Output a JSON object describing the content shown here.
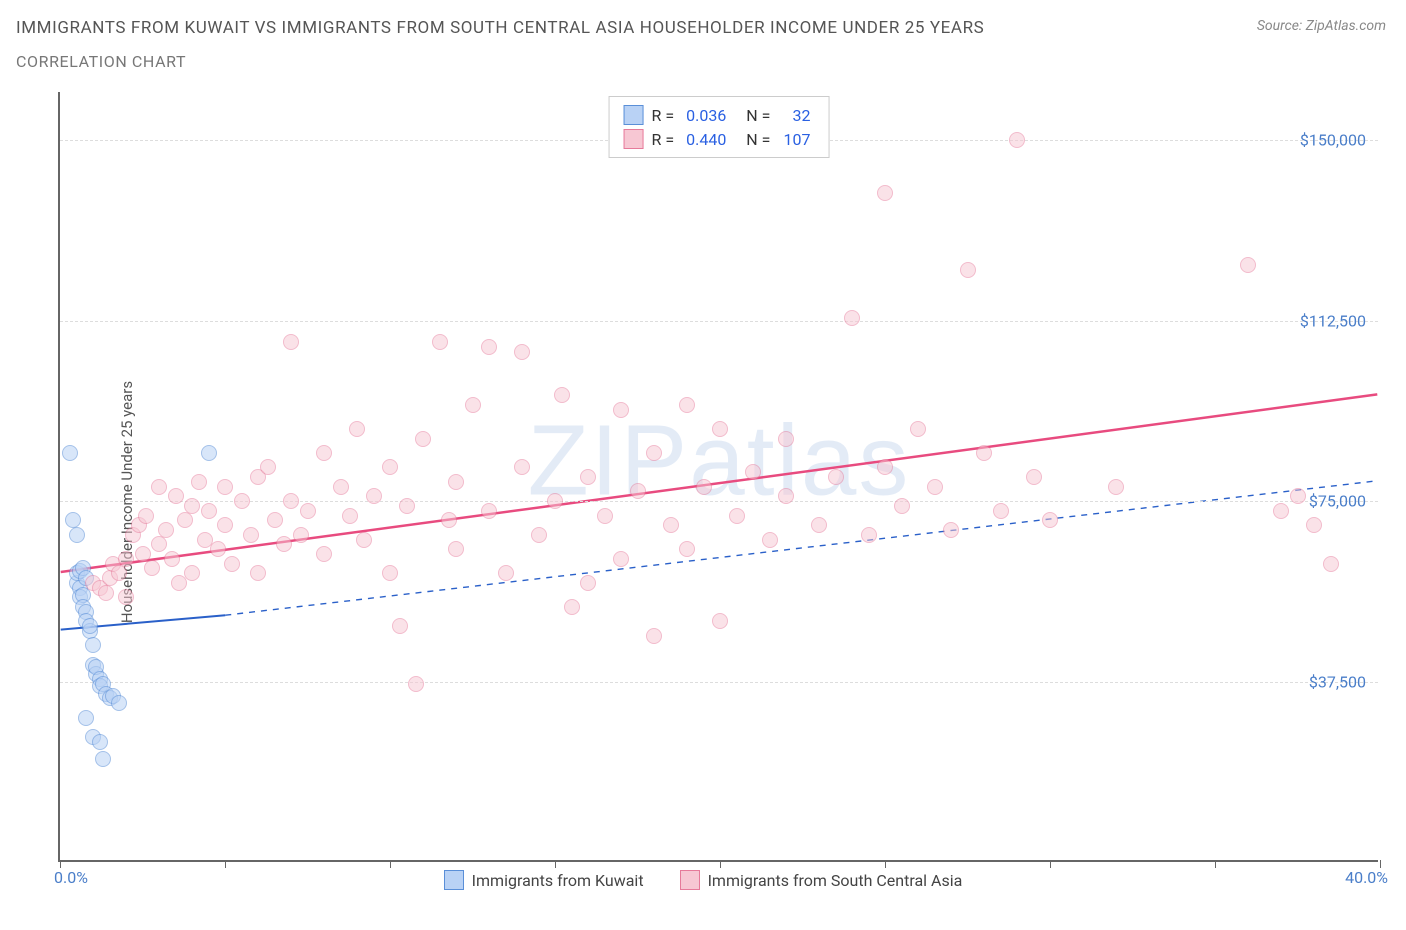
{
  "title": "IMMIGRANTS FROM KUWAIT VS IMMIGRANTS FROM SOUTH CENTRAL ASIA HOUSEHOLDER INCOME UNDER 25 YEARS",
  "subtitle": "CORRELATION CHART",
  "source": "Source: ZipAtlas.com",
  "watermark": "ZIPatlas",
  "y_axis_label": "Householder Income Under 25 years",
  "chart": {
    "type": "scatter",
    "xlim": [
      0,
      40
    ],
    "ylim": [
      0,
      160000
    ],
    "x_min_label": "0.0%",
    "x_max_label": "40.0%",
    "x_ticks": [
      0,
      5,
      10,
      15,
      20,
      25,
      30,
      35,
      40
    ],
    "y_gridlines": [
      37500,
      75000,
      112500,
      150000
    ],
    "y_tick_labels": [
      "$37,500",
      "$75,000",
      "$112,500",
      "$150,000"
    ],
    "background_color": "#ffffff",
    "grid_color": "#dddddd",
    "axis_color": "#666666",
    "tick_label_color": "#4a7ec9",
    "marker_radius": 8,
    "marker_stroke_width": 1.5
  },
  "series": [
    {
      "name": "Immigrants from Kuwait",
      "key": "kuwait",
      "fill": "#b9d2f5",
      "stroke": "#5a8fd8",
      "fill_opacity": 0.55,
      "R": "0.036",
      "N": "32",
      "trend": {
        "solid_from": [
          0,
          48000
        ],
        "solid_to": [
          5,
          51000
        ],
        "dashed_to": [
          40,
          79000
        ],
        "color": "#2a60c9",
        "width": 2
      },
      "points": [
        [
          0.3,
          85000
        ],
        [
          0.4,
          71000
        ],
        [
          0.5,
          68000
        ],
        [
          0.5,
          58000
        ],
        [
          0.5,
          60000
        ],
        [
          0.6,
          57000
        ],
        [
          0.6,
          55000
        ],
        [
          0.7,
          55500
        ],
        [
          0.7,
          53000
        ],
        [
          0.8,
          52000
        ],
        [
          0.8,
          50000
        ],
        [
          0.9,
          48000
        ],
        [
          0.9,
          49000
        ],
        [
          1.0,
          45000
        ],
        [
          1.0,
          41000
        ],
        [
          1.1,
          39000
        ],
        [
          1.1,
          40500
        ],
        [
          1.2,
          38000
        ],
        [
          1.2,
          36500
        ],
        [
          1.3,
          37000
        ],
        [
          1.4,
          35000
        ],
        [
          1.5,
          34000
        ],
        [
          1.6,
          34500
        ],
        [
          1.8,
          33000
        ],
        [
          0.8,
          30000
        ],
        [
          1.0,
          26000
        ],
        [
          1.2,
          25000
        ],
        [
          1.3,
          21500
        ],
        [
          0.6,
          60500
        ],
        [
          0.7,
          61000
        ],
        [
          0.8,
          59000
        ],
        [
          4.5,
          85000
        ]
      ]
    },
    {
      "name": "Immigrants from South Central Asia",
      "key": "sca",
      "fill": "#f7c7d3",
      "stroke": "#e67a9a",
      "fill_opacity": 0.5,
      "R": "0.440",
      "N": "107",
      "trend": {
        "solid_from": [
          0,
          60000
        ],
        "solid_to": [
          40,
          97000
        ],
        "color": "#e84b7f",
        "width": 2.5
      },
      "points": [
        [
          1.0,
          58000
        ],
        [
          1.2,
          57000
        ],
        [
          1.4,
          56000
        ],
        [
          1.5,
          59000
        ],
        [
          1.6,
          62000
        ],
        [
          1.8,
          60000
        ],
        [
          2.0,
          63000
        ],
        [
          2.0,
          55000
        ],
        [
          2.2,
          68000
        ],
        [
          2.4,
          70000
        ],
        [
          2.5,
          64000
        ],
        [
          2.6,
          72000
        ],
        [
          2.8,
          61000
        ],
        [
          3.0,
          66000
        ],
        [
          3.0,
          78000
        ],
        [
          3.2,
          69000
        ],
        [
          3.4,
          63000
        ],
        [
          3.5,
          76000
        ],
        [
          3.6,
          58000
        ],
        [
          3.8,
          71000
        ],
        [
          4.0,
          74000
        ],
        [
          4.0,
          60000
        ],
        [
          4.2,
          79000
        ],
        [
          4.4,
          67000
        ],
        [
          4.5,
          73000
        ],
        [
          4.8,
          65000
        ],
        [
          5.0,
          70000
        ],
        [
          5.0,
          78000
        ],
        [
          5.2,
          62000
        ],
        [
          5.5,
          75000
        ],
        [
          5.8,
          68000
        ],
        [
          6.0,
          80000
        ],
        [
          6.0,
          60000
        ],
        [
          6.3,
          82000
        ],
        [
          6.5,
          71000
        ],
        [
          6.8,
          66000
        ],
        [
          7.0,
          75000
        ],
        [
          7.0,
          108000
        ],
        [
          7.3,
          68000
        ],
        [
          7.5,
          73000
        ],
        [
          8.0,
          85000
        ],
        [
          8.0,
          64000
        ],
        [
          8.5,
          78000
        ],
        [
          8.8,
          72000
        ],
        [
          9.0,
          90000
        ],
        [
          9.2,
          67000
        ],
        [
          9.5,
          76000
        ],
        [
          10.0,
          82000
        ],
        [
          10.0,
          60000
        ],
        [
          10.3,
          49000
        ],
        [
          10.5,
          74000
        ],
        [
          10.8,
          37000
        ],
        [
          11.0,
          88000
        ],
        [
          11.5,
          108000
        ],
        [
          11.8,
          71000
        ],
        [
          12.0,
          79000
        ],
        [
          12.0,
          65000
        ],
        [
          12.5,
          95000
        ],
        [
          13.0,
          107000
        ],
        [
          13.0,
          73000
        ],
        [
          13.5,
          60000
        ],
        [
          14.0,
          82000
        ],
        [
          14.0,
          106000
        ],
        [
          14.5,
          68000
        ],
        [
          15.0,
          75000
        ],
        [
          15.2,
          97000
        ],
        [
          15.5,
          53000
        ],
        [
          16.0,
          58000
        ],
        [
          16.0,
          80000
        ],
        [
          16.5,
          72000
        ],
        [
          17.0,
          94000
        ],
        [
          17.0,
          63000
        ],
        [
          17.5,
          77000
        ],
        [
          18.0,
          85000
        ],
        [
          18.0,
          47000
        ],
        [
          18.5,
          70000
        ],
        [
          19.0,
          95000
        ],
        [
          19.0,
          65000
        ],
        [
          19.5,
          78000
        ],
        [
          20.0,
          90000
        ],
        [
          20.0,
          50000
        ],
        [
          20.5,
          72000
        ],
        [
          21.0,
          81000
        ],
        [
          21.5,
          67000
        ],
        [
          22.0,
          76000
        ],
        [
          22.0,
          88000
        ],
        [
          23.0,
          70000
        ],
        [
          23.5,
          80000
        ],
        [
          24.0,
          113000
        ],
        [
          24.5,
          68000
        ],
        [
          25.0,
          82000
        ],
        [
          25.0,
          139000
        ],
        [
          25.5,
          74000
        ],
        [
          26.0,
          90000
        ],
        [
          26.5,
          78000
        ],
        [
          27.0,
          69000
        ],
        [
          27.5,
          123000
        ],
        [
          28.0,
          85000
        ],
        [
          28.5,
          73000
        ],
        [
          29.0,
          150000
        ],
        [
          29.5,
          80000
        ],
        [
          30.0,
          71000
        ],
        [
          32.0,
          78000
        ],
        [
          36.0,
          124000
        ],
        [
          37.0,
          73000
        ],
        [
          37.5,
          76000
        ],
        [
          38.0,
          70000
        ],
        [
          38.5,
          62000
        ]
      ]
    }
  ],
  "legend_bottom": [
    {
      "key": "kuwait",
      "label": "Immigrants from Kuwait"
    },
    {
      "key": "sca",
      "label": "Immigrants from South Central Asia"
    }
  ]
}
